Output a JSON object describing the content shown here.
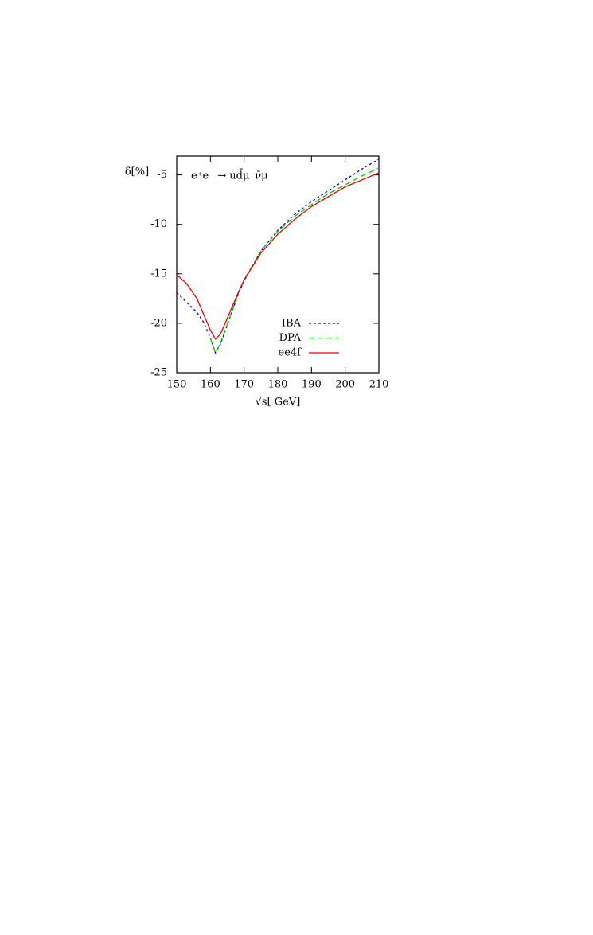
{
  "chart_data": {
    "type": "line",
    "annotation": "e⁺e⁻ → ud̄μ⁻ν̄μ",
    "ylabel": "δ[%]",
    "xlabel": "√s[ GeV]",
    "x": [
      150,
      153,
      156,
      158,
      160,
      161.5,
      163,
      165,
      168,
      170,
      175,
      180,
      185,
      190,
      195,
      200,
      205,
      210
    ],
    "series": [
      {
        "name": "IBA",
        "color": "#0000ee",
        "dash": "3,3",
        "values": [
          -16.9,
          -17.9,
          -18.9,
          -19.9,
          -21.5,
          -23.0,
          -22.1,
          -20.2,
          -17.3,
          -15.7,
          -12.7,
          -10.6,
          -9.0,
          -7.7,
          -6.6,
          -5.5,
          -4.4,
          -3.4
        ]
      },
      {
        "name": "DPA",
        "color": "#00cc00",
        "dash": "7,4",
        "values": [
          null,
          null,
          null,
          null,
          -21.5,
          -23.0,
          -22.0,
          -20.1,
          -17.2,
          -15.6,
          -12.7,
          -10.7,
          -9.2,
          -8.0,
          -6.9,
          -6.0,
          -5.1,
          -4.3
        ]
      },
      {
        "name": "ee4f",
        "color": "#ee0000",
        "dash": "none",
        "values": [
          -15.1,
          -16.0,
          -17.5,
          -19.1,
          -20.7,
          -21.6,
          -21.1,
          -19.5,
          -17.1,
          -15.6,
          -12.9,
          -11.0,
          -9.5,
          -8.2,
          -7.2,
          -6.2,
          -5.5,
          -4.8
        ]
      }
    ],
    "xlim": [
      150,
      210
    ],
    "xticks": [
      150,
      160,
      170,
      180,
      190,
      200,
      210
    ],
    "ylim": [
      -25,
      -3.1
    ],
    "yticks": [
      -25,
      -20,
      -15,
      -10,
      -5
    ]
  }
}
